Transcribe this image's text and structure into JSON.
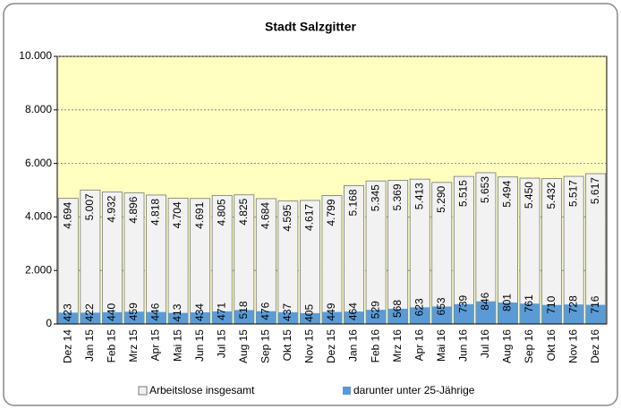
{
  "chart_data": {
    "type": "bar",
    "title": "Stadt Salzgitter",
    "categories": [
      "Dez 14",
      "Jan 15",
      "Feb 15",
      "Mrz 15",
      "Apr 15",
      "Mai 15",
      "Jun 15",
      "Jul 15",
      "Aug 15",
      "Sep 15",
      "Okt 15",
      "Nov 15",
      "Dez 15",
      "Jan 16",
      "Feb 16",
      "Mrz 16",
      "Apr 16",
      "Mai 16",
      "Jun 16",
      "Jul 16",
      "Aug 16",
      "Sep 16",
      "Okt 16",
      "Nov 16",
      "Dez 16"
    ],
    "series": [
      {
        "name": "Arbeitslose insgesamt",
        "color": "#f2f2f2",
        "values": [
          4694,
          5007,
          4932,
          4896,
          4818,
          4704,
          4691,
          4805,
          4825,
          4684,
          4595,
          4617,
          4799,
          5168,
          5345,
          5369,
          5413,
          5290,
          5515,
          5653,
          5494,
          5450,
          5432,
          5517,
          5617
        ],
        "value_labels": [
          "4.694",
          "5.007",
          "4.932",
          "4.896",
          "4.818",
          "4.704",
          "4.691",
          "4.805",
          "4.825",
          "4.684",
          "4.595",
          "4.617",
          "4.799",
          "5.168",
          "5.345",
          "5.369",
          "5.413",
          "5.290",
          "5.515",
          "5.653",
          "5.494",
          "5.450",
          "5.432",
          "5.517",
          "5.617"
        ]
      },
      {
        "name": "darunter unter 25-Jährige",
        "color": "#5b9bd5",
        "values": [
          423,
          422,
          440,
          459,
          446,
          413,
          434,
          471,
          518,
          476,
          437,
          405,
          449,
          464,
          529,
          568,
          623,
          653,
          739,
          846,
          801,
          761,
          710,
          728,
          716
        ]
      }
    ],
    "ylim": [
      0,
      10000
    ],
    "yticks": [
      0,
      {
        "value": 2000,
        "label": "2.000"
      },
      {
        "value": 4000,
        "label": "4.000"
      },
      {
        "value": 6000,
        "label": "6.000"
      },
      {
        "value": 8000,
        "label": "8.000"
      },
      {
        "value": 10000,
        "label": "10.000"
      }
    ],
    "grid": true,
    "plot_background": "#ffffc0",
    "legend": "bottom"
  }
}
